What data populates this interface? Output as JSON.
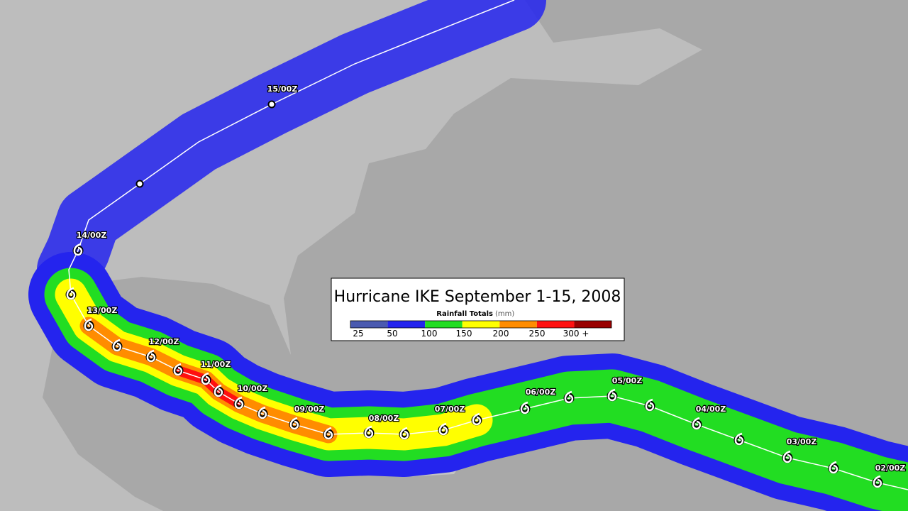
{
  "legend": {
    "title": "Hurricane IKE  September 1-15, 2008",
    "label": "Rainfall Totals",
    "unit": "(mm)",
    "ticks": [
      "25",
      "50",
      "100",
      "150",
      "200",
      "250",
      "300 +"
    ],
    "colors": [
      "#4a5ab0",
      "#2424ee",
      "#22dd22",
      "#ffff00",
      "#ff8c00",
      "#ff1010",
      "#990000"
    ]
  },
  "track_labels": [
    "02/00Z",
    "03/00Z",
    "04/00Z",
    "05/00Z",
    "06/00Z",
    "07/00Z",
    "08/00Z",
    "09/00Z",
    "10/00Z",
    "11/00Z",
    "12/00Z",
    "13/00Z",
    "14/00Z",
    "15/00Z"
  ]
}
